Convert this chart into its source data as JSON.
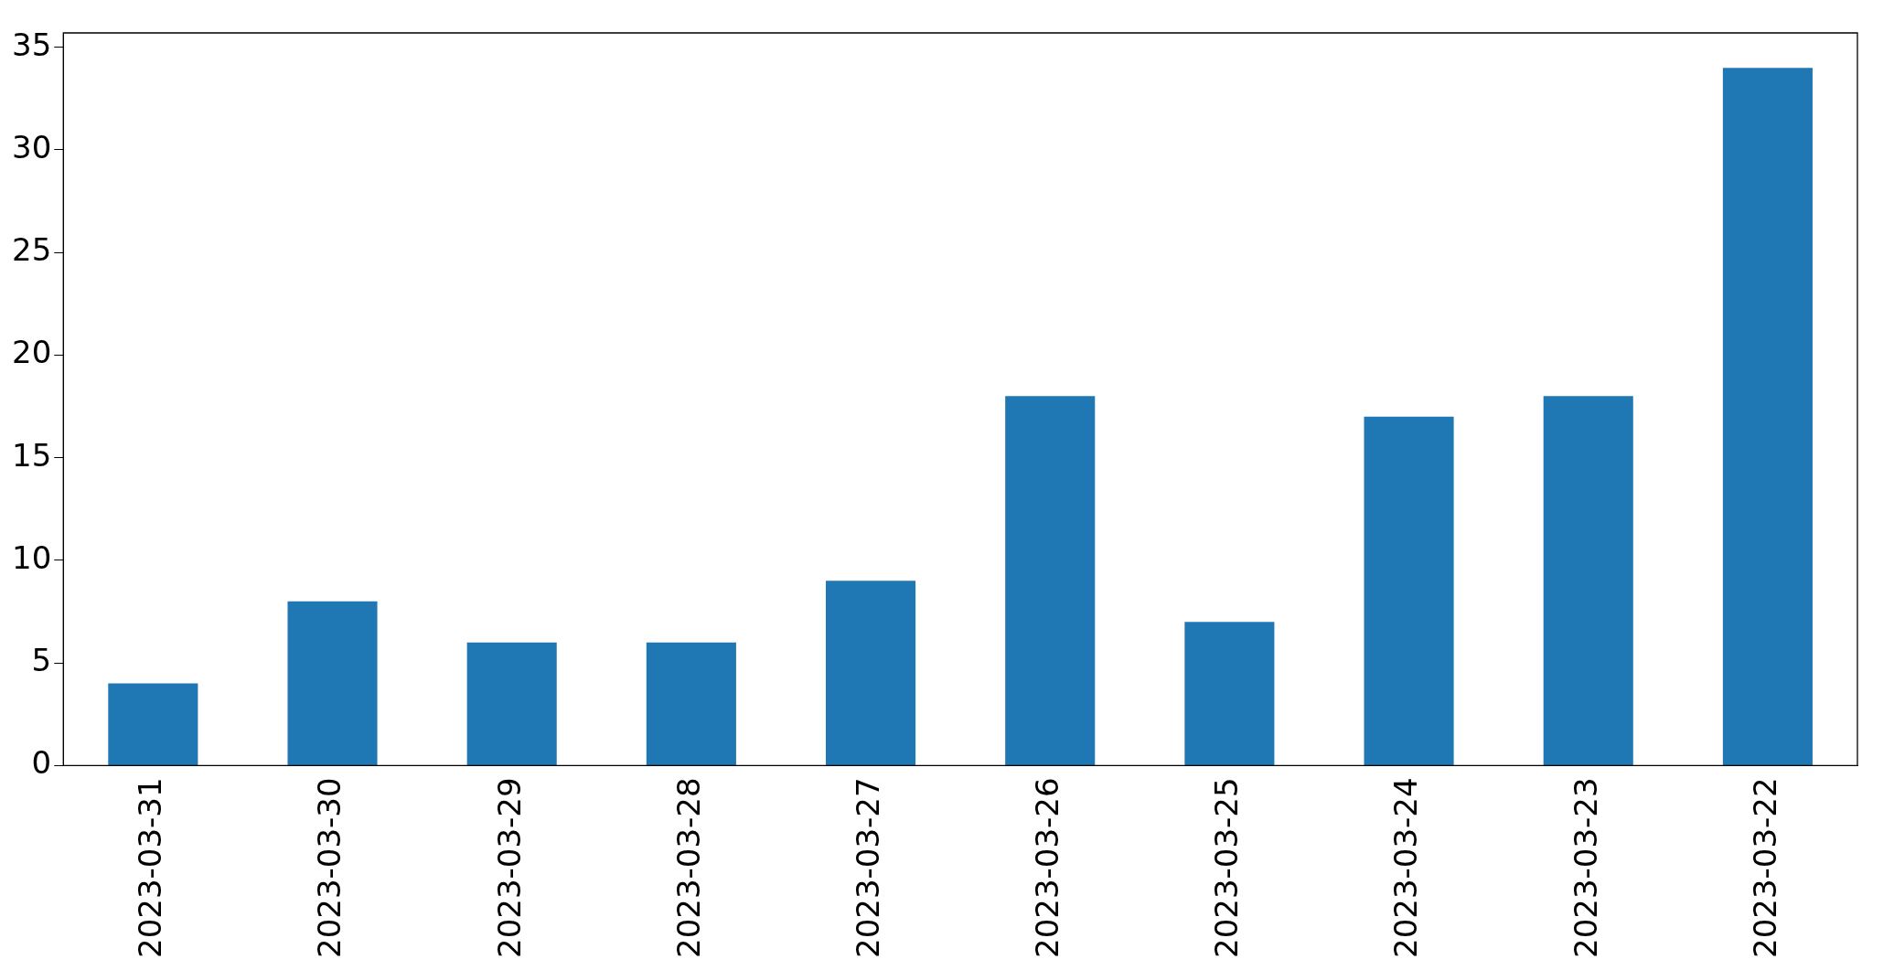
{
  "chart_data": {
    "type": "bar",
    "categories": [
      "2023-03-31",
      "2023-03-30",
      "2023-03-29",
      "2023-03-28",
      "2023-03-27",
      "2023-03-26",
      "2023-03-25",
      "2023-03-24",
      "2023-03-23",
      "2023-03-22"
    ],
    "values": [
      4,
      8,
      6,
      6,
      9,
      18,
      7,
      17,
      18,
      34
    ],
    "color": "#1f77b4",
    "ylim": [
      0,
      35.7
    ],
    "yticks": [
      0,
      5,
      10,
      15,
      20,
      25,
      30,
      35
    ]
  }
}
